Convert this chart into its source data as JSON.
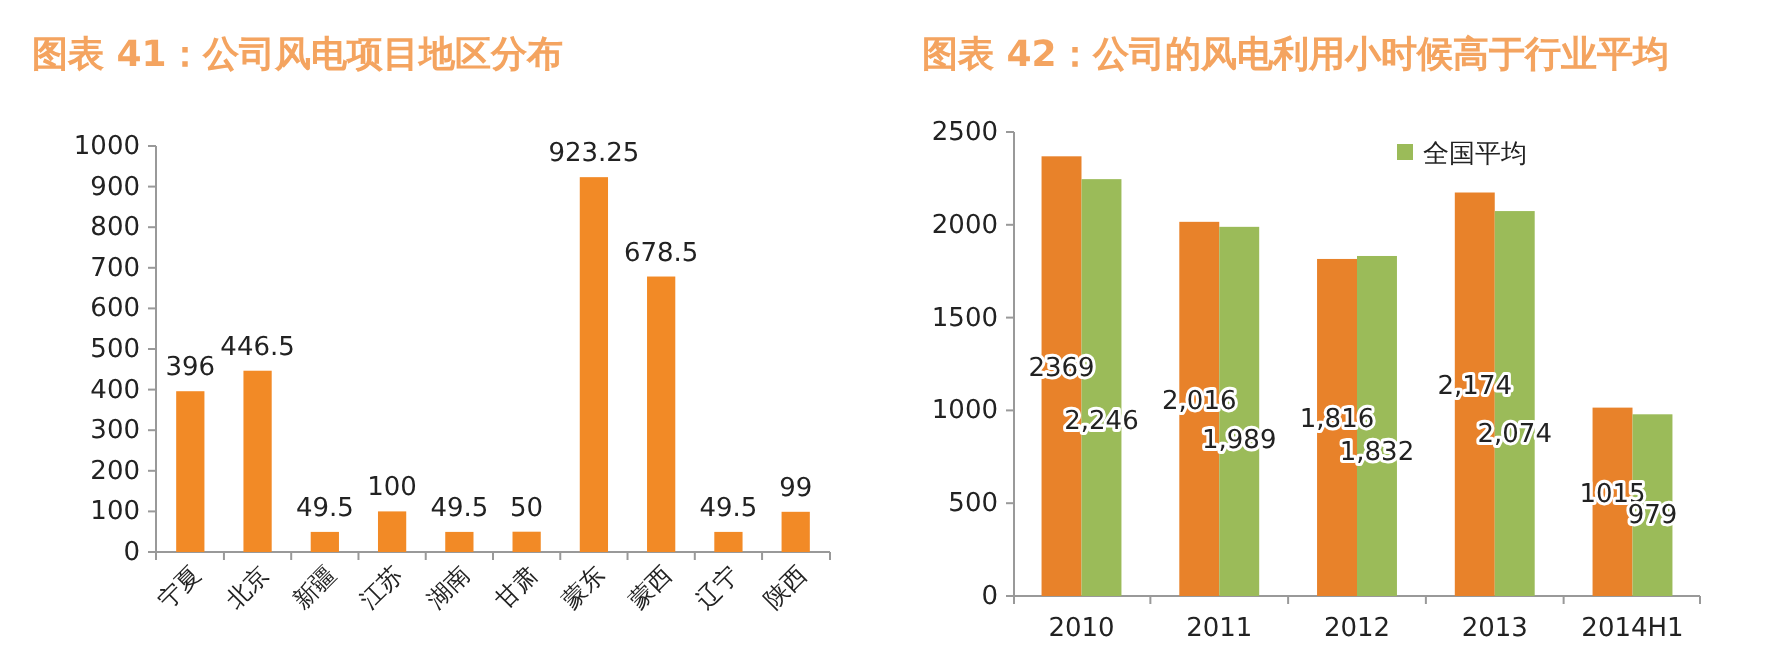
{
  "chart_data": [
    {
      "type": "bar",
      "title": "图表 41：公司风电项目地区分布",
      "categories": [
        "宁夏",
        "北京",
        "新疆",
        "江苏",
        "湖南",
        "甘肃",
        "蒙东",
        "蒙西",
        "辽宁",
        "陕西"
      ],
      "values": [
        396,
        446.5,
        49.5,
        100,
        49.5,
        50,
        923.25,
        678.5,
        49.5,
        99
      ],
      "color": "#f28a26",
      "ylim": [
        0,
        1000
      ],
      "yticks": [
        0,
        100,
        200,
        300,
        400,
        500,
        600,
        700,
        800,
        900,
        1000
      ],
      "data_labels": true,
      "grid": false,
      "legend": false
    },
    {
      "type": "bar",
      "title": "图表 42：公司的风电利用小时候高于行业平均",
      "categories": [
        "2010",
        "2011",
        "2012",
        "2013",
        "2014H1"
      ],
      "series": [
        {
          "color": "#e8822a",
          "values": [
            2369,
            2016,
            1816,
            2174,
            1015
          ],
          "value_labels": [
            "2369",
            "2,016",
            "1,816",
            "2,174",
            "1015"
          ]
        },
        {
          "name": "全国平均",
          "color": "#9bbb59",
          "values": [
            2246,
            1989,
            1832,
            2074,
            979
          ],
          "value_labels": [
            "2,246",
            "1,989",
            "1,832",
            "2,074",
            "979"
          ]
        }
      ],
      "ylim": [
        0,
        2500
      ],
      "yticks": [
        0,
        500,
        1000,
        1500,
        2000,
        2500
      ],
      "grid": false,
      "legend": "top"
    }
  ]
}
